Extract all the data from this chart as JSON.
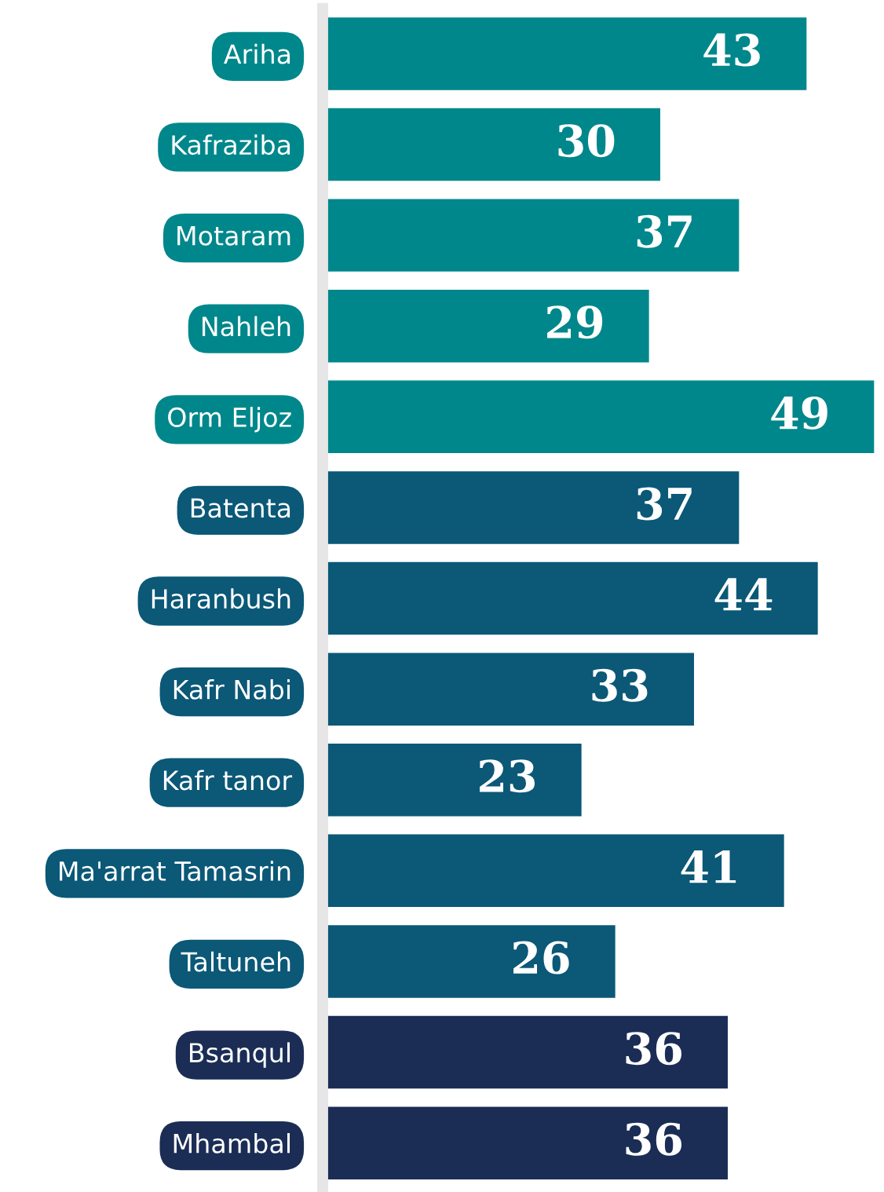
{
  "chart_data": {
    "type": "bar",
    "orientation": "horizontal",
    "categories": [
      "Ariha",
      "Kafraziba",
      "Motaram",
      "Nahleh",
      "Orm Eljoz",
      "Batenta",
      "Haranbush",
      "Kafr Nabi",
      "Kafr tanor",
      "Ma'arrat Tamasrin",
      "Taltuneh",
      "Bsanqul",
      "Mhambal"
    ],
    "values": [
      43,
      30,
      37,
      29,
      49,
      37,
      44,
      33,
      23,
      41,
      26,
      36,
      36
    ],
    "colors": [
      "#00878b",
      "#00878b",
      "#00878b",
      "#00878b",
      "#00878b",
      "#0b5877",
      "#0b5877",
      "#0b5877",
      "#0b5877",
      "#0b5877",
      "#0b5877",
      "#1b2d55",
      "#1b2d55"
    ],
    "data_labels": true,
    "legend": false,
    "grid": false
  }
}
